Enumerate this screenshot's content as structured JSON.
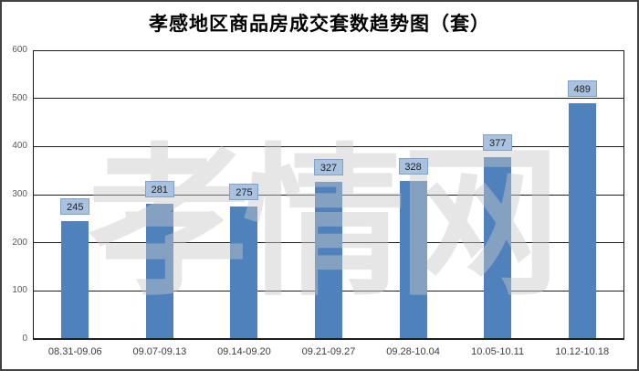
{
  "chart_data": {
    "type": "bar",
    "title": "孝感地区商品房成交套数趋势图（套）",
    "categories": [
      "08.31-09.06",
      "09.07-09.13",
      "09.14-09.20",
      "09.21-09.27",
      "09.28-10.04",
      "10.05-10.11",
      "10.12-10.18"
    ],
    "values": [
      245,
      281,
      275,
      327,
      328,
      377,
      489
    ],
    "ylim": [
      0,
      600
    ],
    "yticks": [
      0,
      100,
      200,
      300,
      400,
      500,
      600
    ],
    "grid": true,
    "legend": "none",
    "watermark_text": "孝情网",
    "colors": {
      "bar": "#4F81BD",
      "data_label_fill": "#A9C2DF",
      "data_label_border": "#7EA2CC",
      "data_label_text": "#1f1f1f",
      "gridline": "#1e1e1e",
      "watermark": "#c7c7c7"
    }
  }
}
